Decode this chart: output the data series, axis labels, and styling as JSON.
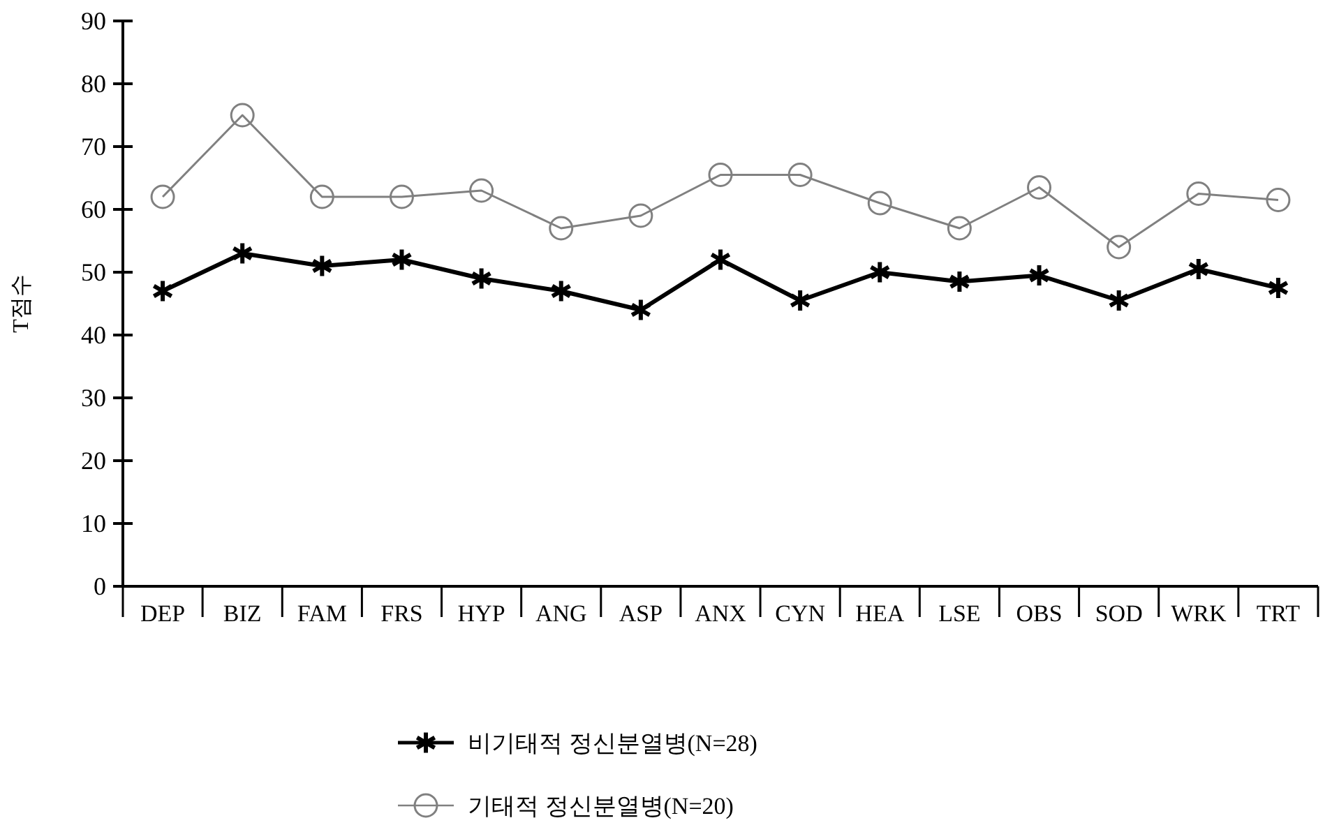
{
  "chart_data": {
    "type": "line",
    "ylabel": "T점수",
    "categories": [
      "DEP",
      "BIZ",
      "FAM",
      "FRS",
      "HYP",
      "ANG",
      "ASP",
      "ANX",
      "CYN",
      "HEA",
      "LSE",
      "OBS",
      "SOD",
      "WRK",
      "TRT"
    ],
    "series": [
      {
        "name": "비기태적 정신분열병(N=28)",
        "color": "#000000",
        "marker": "cross",
        "values": [
          47,
          53,
          51,
          52,
          49,
          47,
          44,
          52,
          45.5,
          50,
          48.5,
          49.5,
          45.5,
          50.5,
          47.5
        ]
      },
      {
        "name": "기태적 정신분열병(N=20)",
        "color": "#808080",
        "marker": "circle",
        "values": [
          62,
          75,
          62,
          62,
          63,
          57,
          59,
          65.5,
          65.5,
          61,
          57,
          63.5,
          54,
          62.5,
          61.5
        ]
      }
    ],
    "ylim": [
      0,
      90
    ],
    "yticks": [
      0,
      10,
      20,
      30,
      40,
      50,
      60,
      70,
      80,
      90
    ],
    "grid": false,
    "legend": "bottom"
  }
}
